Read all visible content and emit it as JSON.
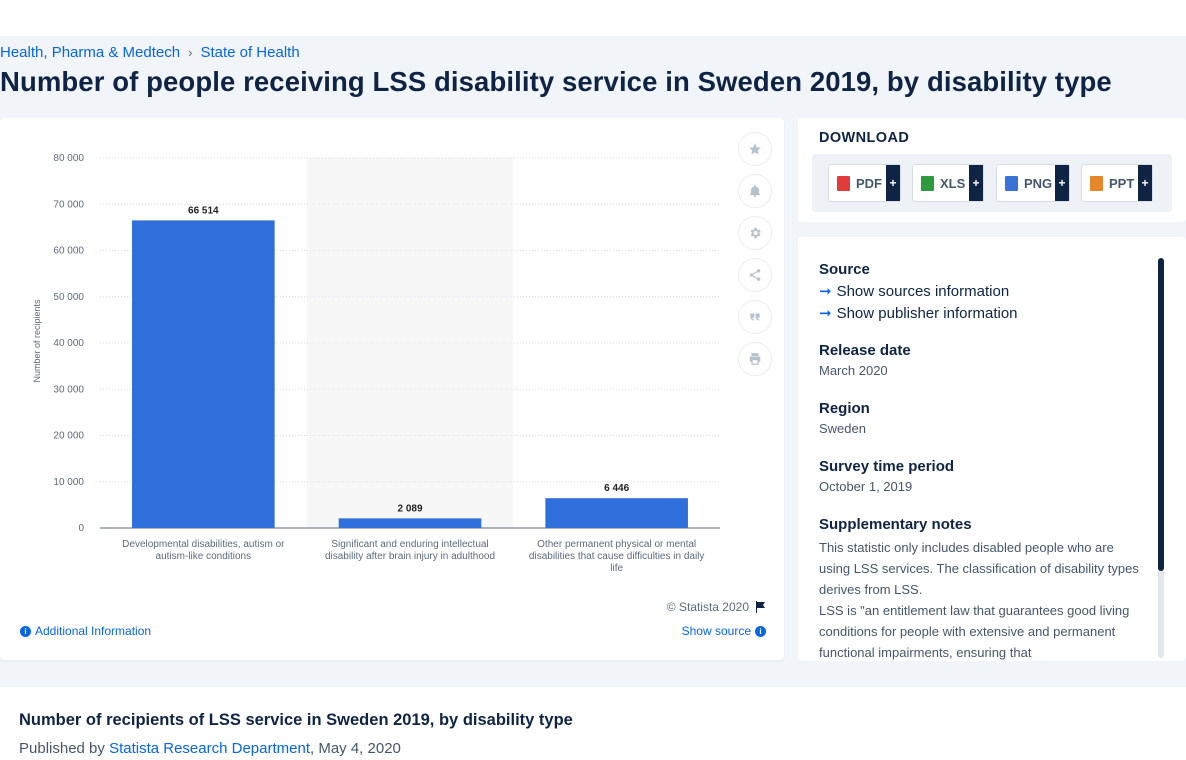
{
  "breadcrumb": {
    "items": [
      "Health, Pharma & Medtech",
      "State of Health"
    ],
    "separator": "›"
  },
  "page_title": "Number of people receiving LSS disability service in Sweden 2019, by disability type",
  "chart_toolbar": {
    "icons": [
      "star-icon",
      "bell-icon",
      "gear-icon",
      "share-icon",
      "quote-icon",
      "print-icon"
    ]
  },
  "chart_data": {
    "type": "bar",
    "categories": [
      "Developmental disabilities, autism or autism-like conditions",
      "Significant and enduring intellectual disability after brain injury in adulthood",
      "Other permanent physical or mental disabilities that cause difficulties in daily life"
    ],
    "category_lines": [
      [
        "Developmental disabilities, autism or",
        "autism-like conditions"
      ],
      [
        "Significant and enduring intellectual",
        "disability after brain injury in adulthood"
      ],
      [
        "Other permanent physical or mental",
        "disabilities that cause difficulties in daily",
        "life"
      ]
    ],
    "values": [
      66514,
      2089,
      6446
    ],
    "value_labels": [
      "66 514",
      "2 089",
      "6 446"
    ],
    "ylabel": "Number of recipients",
    "xlabel": "",
    "ylim": [
      0,
      80000
    ],
    "yticks": [
      0,
      10000,
      20000,
      30000,
      40000,
      50000,
      60000,
      70000,
      80000
    ],
    "ytick_labels": [
      "0",
      "10 000",
      "20 000",
      "30 000",
      "40 000",
      "50 000",
      "60 000",
      "70 000",
      "80 000"
    ],
    "grid": true,
    "bar_color": "#2e6fdb",
    "highlight_band_index": 1,
    "highlight_band_color": "#f7f7f7"
  },
  "chart_footer": {
    "copyright": "© Statista 2020",
    "additional_info": "Additional Information",
    "show_source": "Show source"
  },
  "download": {
    "title": "DOWNLOAD",
    "buttons": [
      {
        "label": "PDF",
        "color": "#e23b3b"
      },
      {
        "label": "XLS",
        "color": "#2e9a3e"
      },
      {
        "label": "PNG",
        "color": "#3b72d6"
      },
      {
        "label": "PPT",
        "color": "#e8862a"
      }
    ],
    "plus": "+"
  },
  "source_panel": {
    "source_heading": "Source",
    "show_sources": "Show sources information",
    "show_publisher": "Show publisher information",
    "release_heading": "Release date",
    "release_value": "March 2020",
    "region_heading": "Region",
    "region_value": "Sweden",
    "survey_heading": "Survey time period",
    "survey_value": "October 1, 2019",
    "notes_heading": "Supplementary notes",
    "notes_1": "This statistic only includes disabled people who are using LSS services. The classification of disability types derives from LSS.",
    "notes_2": "LSS is \"an entitlement law that guarantees good living conditions for people with extensive and permanent functional impairments, ensuring that"
  },
  "bottom": {
    "title": "Number of recipients of LSS service in Sweden 2019, by disability type",
    "published_prefix": "Published by",
    "publisher": "Statista Research Department",
    "date": ", May 4, 2020"
  },
  "colors": {
    "accent": "#0666e5",
    "navy": "#0f2444"
  }
}
